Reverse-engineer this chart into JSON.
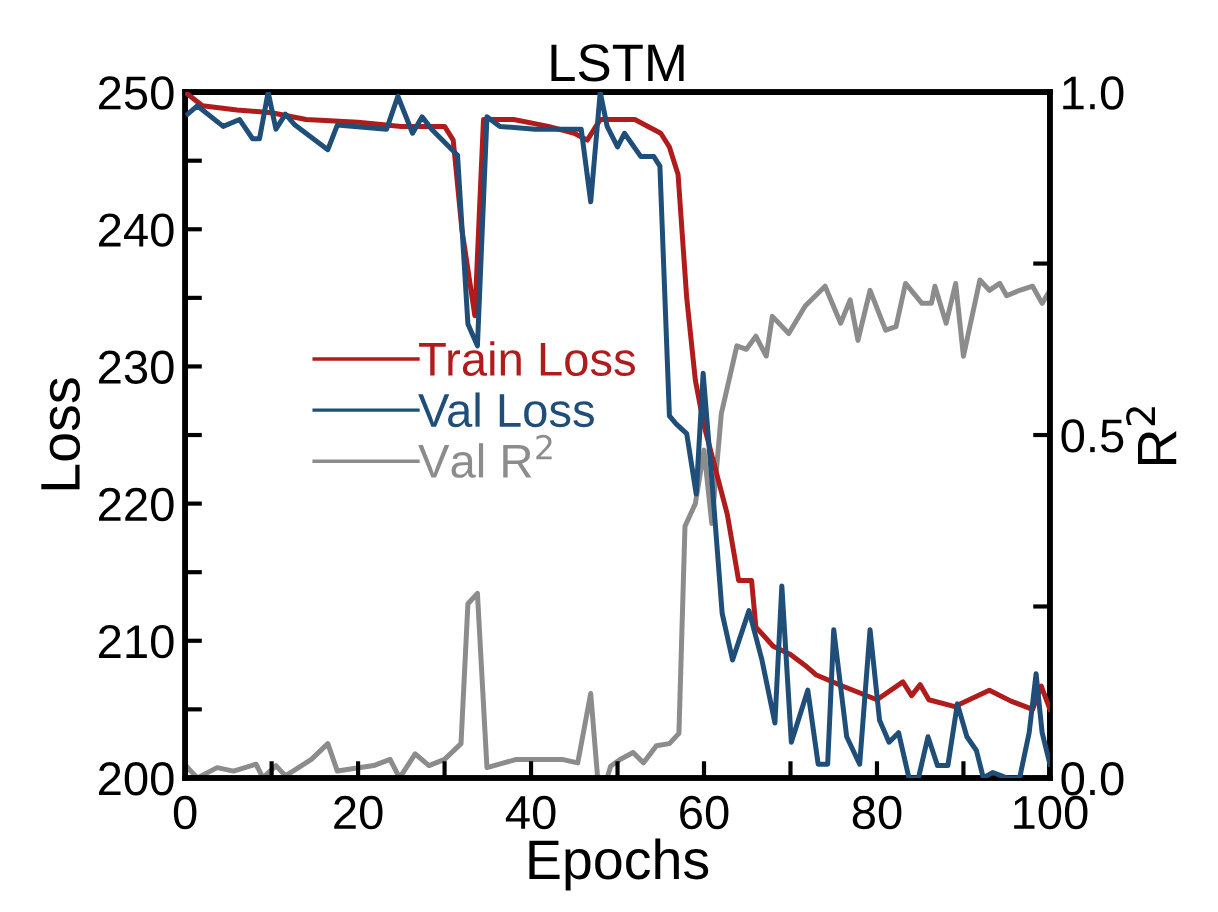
{
  "chart_data": {
    "type": "line",
    "title": "LSTM",
    "xlabel": "Epochs",
    "ylabel": "Loss",
    "y2label": "R$^{2}$",
    "xlim": [
      0,
      100
    ],
    "xticks": [
      0,
      {
        "value": 10,
        "label": null
      },
      20,
      {
        "value": 30,
        "label": null
      },
      40,
      {
        "value": 50,
        "label": null
      },
      60,
      {
        "value": 70,
        "label": null
      },
      80,
      {
        "value": 90,
        "label": null
      },
      100
    ],
    "ylim": [
      200,
      250
    ],
    "yticks": [
      200,
      {
        "value": 205,
        "label": null
      },
      210,
      {
        "value": 215,
        "label": null
      },
      220,
      {
        "value": 225,
        "label": null
      },
      230,
      {
        "value": 235,
        "label": null
      },
      240,
      {
        "value": 245,
        "label": null
      },
      250
    ],
    "y2lim": [
      0,
      1
    ],
    "y2ticks": [
      {
        "value": 0,
        "label": "0.0"
      },
      {
        "value": 0.25,
        "label": null
      },
      {
        "value": 0.5,
        "label": "0.5"
      },
      {
        "value": 0.75,
        "label": null
      },
      {
        "value": 1,
        "label": "1.0"
      }
    ],
    "legend": "left",
    "grid": false,
    "marker": "none",
    "line_style": "solid",
    "series": [
      {
        "name": "Train Loss",
        "color": "#b01c1c",
        "x": [
          0,
          2,
          6,
          10,
          14,
          20,
          25,
          30,
          31,
          32,
          33.5,
          34.5,
          38,
          42,
          45,
          46.5,
          48,
          52,
          55,
          56,
          57,
          58,
          59,
          60,
          62.7,
          64,
          65.5,
          66,
          68,
          70,
          71.7,
          73,
          76,
          80,
          83,
          84,
          85,
          86,
          89,
          93,
          95.5,
          98,
          99,
          100
        ],
        "values": [
          250,
          249,
          248.7,
          248.5,
          248,
          247.8,
          247.5,
          247.5,
          246.5,
          240,
          233.7,
          248,
          248,
          247.5,
          247,
          246.5,
          248,
          248,
          247,
          246,
          244,
          235,
          229,
          225.7,
          219.2,
          214.4,
          214.4,
          211,
          209.6,
          209,
          208.2,
          207.5,
          206.7,
          205.7,
          207,
          206,
          206.8,
          205.7,
          205.2,
          206.4,
          205.6,
          205,
          206.7,
          205
        ]
      },
      {
        "name": "Val Loss",
        "color": "#1f4e79",
        "x": [
          0.3,
          1.4,
          4.4,
          6.3,
          7.8,
          8.6,
          9.6,
          10.5,
          11.6,
          12.7,
          16.5,
          17.6,
          23.3,
          24.6,
          26.3,
          27.4,
          28.5,
          31.5,
          32.7,
          33.8,
          34.9,
          36.4,
          40.5,
          45.8,
          46.9,
          48,
          48.8,
          50,
          50.8,
          52.7,
          54.2,
          54.9,
          56,
          56.8,
          58,
          59.1,
          59.9,
          61,
          62.1,
          63.3,
          65.2,
          66.7,
          68.2,
          69,
          70.1,
          72,
          73.2,
          74.3,
          75,
          76.5,
          78,
          79.2,
          80.3,
          81.4,
          82.5,
          83.7,
          84.8,
          85.9,
          87,
          88.2,
          89.3,
          90.4,
          91.5,
          92.3,
          93.4,
          95,
          96.5,
          97.6,
          98.4,
          99.1,
          100
        ],
        "values": [
          248.4,
          249,
          247.5,
          248,
          246.6,
          246.6,
          250,
          247.3,
          248.4,
          247.6,
          245.8,
          247.6,
          247.3,
          249.7,
          247,
          248.2,
          247.3,
          245.4,
          233.1,
          231.5,
          248.2,
          247.5,
          247.3,
          247.3,
          242,
          250,
          247.5,
          246,
          247,
          245.3,
          245.3,
          244.6,
          226.4,
          225.8,
          225.1,
          220.7,
          229.5,
          221,
          212,
          208.6,
          212.2,
          208.6,
          204,
          214,
          202.6,
          206.4,
          201,
          201,
          210.8,
          203,
          201,
          210.8,
          204.2,
          202.6,
          203.3,
          200,
          200,
          203,
          200.9,
          200.9,
          205.4,
          203,
          202,
          200,
          200.4,
          200,
          200,
          203.3,
          207.6,
          203.3,
          201
        ]
      },
      {
        "name": "Val R$^{2}$",
        "color": "#8c8c8c",
        "axis": "y2",
        "x": [
          0.3,
          1.4,
          3.7,
          5.6,
          8.2,
          9,
          10.5,
          11.6,
          14.6,
          16.5,
          17.6,
          21.8,
          23.7,
          24.8,
          26.6,
          28.2,
          30,
          31.9,
          32.7,
          33.8,
          34.9,
          38.3,
          43.6,
          45.4,
          46.9,
          47.7,
          48.8,
          49.2,
          50.3,
          51.8,
          53,
          54.5,
          56,
          57.1,
          57.8,
          59,
          60,
          60.9,
          62,
          63.8,
          64.9,
          66,
          67.2,
          67.9,
          69.8,
          71.7,
          74,
          75.8,
          76.9,
          77.8,
          79.2,
          81,
          82.2,
          83.3,
          85.2,
          86.3,
          86.7,
          88,
          89.1,
          90,
          91.9,
          93,
          94.2,
          95,
          96.5,
          98,
          99.1,
          100
        ],
        "values": [
          0.015,
          0.0,
          0.015,
          0.01,
          0.02,
          0.0,
          0.018,
          0.003,
          0.027,
          0.05,
          0.01,
          0.018,
          0.027,
          0.0,
          0.035,
          0.018,
          0.027,
          0.05,
          0.254,
          0.269,
          0.015,
          0.027,
          0.027,
          0.022,
          0.123,
          0.0,
          0.0,
          0.017,
          0.027,
          0.037,
          0.022,
          0.047,
          0.05,
          0.065,
          0.367,
          0.4,
          0.478,
          0.371,
          0.531,
          0.63,
          0.625,
          0.644,
          0.615,
          0.673,
          0.648,
          0.688,
          0.717,
          0.663,
          0.697,
          0.638,
          0.711,
          0.653,
          0.658,
          0.721,
          0.692,
          0.692,
          0.717,
          0.663,
          0.721,
          0.615,
          0.726,
          0.711,
          0.721,
          0.703,
          0.711,
          0.717,
          0.692,
          0.711
        ]
      }
    ]
  }
}
